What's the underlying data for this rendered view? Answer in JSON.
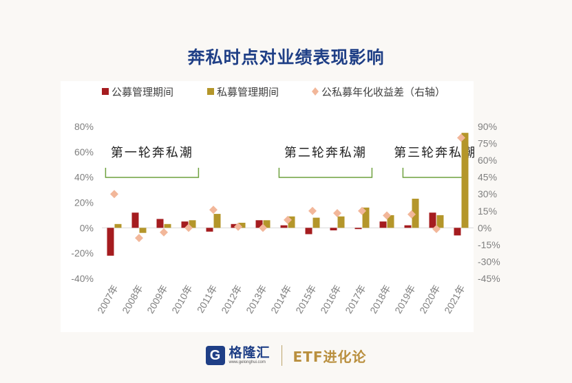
{
  "title": "奔私时点对业绩表现影响",
  "footer": {
    "logo_glyph": "G",
    "logo_name": "格隆汇",
    "logo_url": "www.gelonghui.com",
    "brand": "ETF进化论"
  },
  "colors": {
    "public": "#a51c1f",
    "private": "#b4962a",
    "diff": "#f2b79a",
    "title": "#1f3f86",
    "bracket": "#6da03d"
  },
  "chart_data": {
    "type": "bar",
    "title": "奔私时点对业绩表现影响",
    "categories": [
      "2007年",
      "2008年",
      "2009年",
      "2010年",
      "2011年",
      "2012年",
      "2013年",
      "2014年",
      "2015年",
      "2016年",
      "2017年",
      "2018年",
      "2019年",
      "2020年",
      "2021年"
    ],
    "series": [
      {
        "name": "公募管理期间",
        "type": "bar",
        "axis": "left",
        "values": [
          -22,
          12,
          7,
          5,
          -3,
          3,
          6,
          2,
          -5,
          -2,
          -1,
          5,
          2,
          12,
          -6
        ]
      },
      {
        "name": "私募管理期间",
        "type": "bar",
        "axis": "left",
        "values": [
          3,
          -4,
          3,
          6,
          11,
          4,
          6,
          9,
          8,
          9,
          16,
          10,
          23,
          10,
          75
        ]
      },
      {
        "name": "公私募年化收益差（右轴）",
        "type": "scatter",
        "marker": "diamond",
        "axis": "right",
        "values": [
          30,
          -9,
          -4,
          0,
          16,
          1,
          0,
          7,
          15,
          13,
          15,
          11,
          12,
          -1,
          80
        ]
      }
    ],
    "ylim_left": [
      -40,
      80
    ],
    "yticks_left": [
      "80%",
      "60%",
      "40%",
      "20%",
      "0%",
      "-20%",
      "-40%"
    ],
    "ylim_right": [
      -45,
      90
    ],
    "yticks_right": [
      "90%",
      "75%",
      "60%",
      "45%",
      "30%",
      "15%",
      "0%",
      "-15%",
      "-30%",
      "-45%"
    ],
    "legend_position": "top",
    "annotations": [
      {
        "text": "第一轮奔私潮",
        "from": "2007年",
        "to": "2010年"
      },
      {
        "text": "第二轮奔私潮",
        "from": "2014年",
        "to": "2017年"
      },
      {
        "text": "第三轮奔私潮",
        "from": "2019年",
        "to": "2021年"
      }
    ]
  }
}
